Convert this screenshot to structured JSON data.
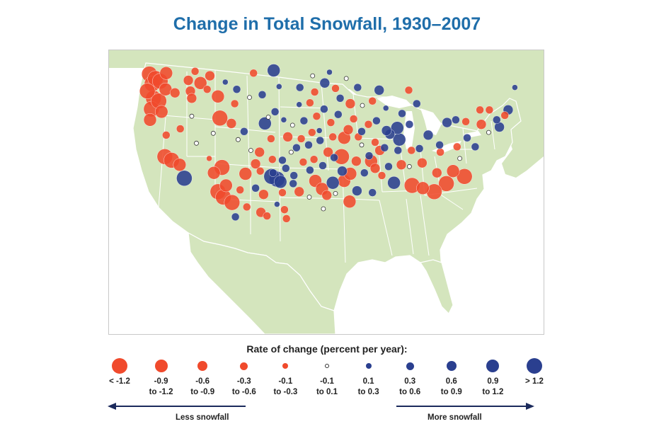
{
  "title": "Change in Total Snowfall, 1930–2007",
  "colors": {
    "decrease": "#f04a2c",
    "increase": "#2a3f8f",
    "neutral_fill": "#ffffff",
    "land": "#d4e5bd",
    "water": "#ffffff",
    "border": "#ffffff",
    "title": "#1f6eaa",
    "arrow": "#1b2a5c"
  },
  "legend": {
    "title": "Rate of change (percent per year):",
    "items": [
      {
        "label": "< -1.2",
        "kind": "decrease",
        "rank": 5
      },
      {
        "label": "-0.9\nto -1.2",
        "kind": "decrease",
        "rank": 4
      },
      {
        "label": "-0.6\nto -0.9",
        "kind": "decrease",
        "rank": 3
      },
      {
        "label": "-0.3\nto -0.6",
        "kind": "decrease",
        "rank": 2
      },
      {
        "label": "-0.1\nto -0.3",
        "kind": "decrease",
        "rank": 1
      },
      {
        "label": "-0.1\nto 0.1",
        "kind": "neutral",
        "rank": 0
      },
      {
        "label": "0.1\nto 0.3",
        "kind": "increase",
        "rank": 1
      },
      {
        "label": "0.3\nto 0.6",
        "kind": "increase",
        "rank": 2
      },
      {
        "label": "0.6\nto 0.9",
        "kind": "increase",
        "rank": 3
      },
      {
        "label": "0.9\nto 1.2",
        "kind": "increase",
        "rank": 4
      },
      {
        "label": "> 1.2",
        "kind": "increase",
        "rank": 5
      }
    ]
  },
  "arrows": {
    "left_label": "Less snowfall",
    "right_label": "More snowfall"
  },
  "stations": [
    {
      "lon": -123.2,
      "lat": 48.3,
      "rate": -1.5
    },
    {
      "lon": -122.3,
      "lat": 47.8,
      "rate": -1.4
    },
    {
      "lon": -122.8,
      "lat": 47.2,
      "rate": -1.5
    },
    {
      "lon": -121.6,
      "lat": 47.5,
      "rate": -1.3
    },
    {
      "lon": -120.7,
      "lat": 48.4,
      "rate": -1.0
    },
    {
      "lon": -123.5,
      "lat": 46.4,
      "rate": -1.4
    },
    {
      "lon": -122.6,
      "lat": 45.6,
      "rate": -1.5
    },
    {
      "lon": -121.8,
      "lat": 45.3,
      "rate": -1.3
    },
    {
      "lon": -122.9,
      "lat": 44.4,
      "rate": -1.4
    },
    {
      "lon": -121.4,
      "lat": 44.1,
      "rate": -1.0
    },
    {
      "lon": -123.1,
      "lat": 43.2,
      "rate": -1.2
    },
    {
      "lon": -120.8,
      "lat": 46.6,
      "rate": -1.0
    },
    {
      "lon": -119.4,
      "lat": 46.2,
      "rate": -0.7
    },
    {
      "lon": -117.4,
      "lat": 47.6,
      "rate": -0.7
    },
    {
      "lon": -117.1,
      "lat": 46.4,
      "rate": -0.8
    },
    {
      "lon": -116.4,
      "lat": 48.6,
      "rate": -0.4
    },
    {
      "lon": -115.6,
      "lat": 47.3,
      "rate": -1.0
    },
    {
      "lon": -114.2,
      "lat": 48.1,
      "rate": -0.8
    },
    {
      "lon": -116.9,
      "lat": 45.6,
      "rate": -0.6
    },
    {
      "lon": -114.6,
      "lat": 46.6,
      "rate": -0.5
    },
    {
      "lon": -113.0,
      "lat": 45.8,
      "rate": -1.1
    },
    {
      "lon": -111.9,
      "lat": 47.4,
      "rate": 0.2
    },
    {
      "lon": -110.5,
      "lat": 45.0,
      "rate": -0.3
    },
    {
      "lon": -110.2,
      "lat": 46.6,
      "rate": 0.3
    },
    {
      "lon": -107.7,
      "lat": 48.4,
      "rate": -0.3
    },
    {
      "lon": -104.7,
      "lat": 48.7,
      "rate": 0.9
    },
    {
      "lon": -106.4,
      "lat": 46.0,
      "rate": 0.4
    },
    {
      "lon": -103.9,
      "lat": 46.9,
      "rate": 0.2
    },
    {
      "lon": -108.3,
      "lat": 45.7,
      "rate": 0.0
    },
    {
      "lon": -112.7,
      "lat": 43.4,
      "rate": -1.3
    },
    {
      "lon": -111.0,
      "lat": 42.8,
      "rate": -0.6
    },
    {
      "lon": -109.1,
      "lat": 41.9,
      "rate": 0.3
    },
    {
      "lon": -106.0,
      "lat": 42.8,
      "rate": 0.9
    },
    {
      "lon": -104.5,
      "lat": 44.1,
      "rate": 0.3
    },
    {
      "lon": -103.2,
      "lat": 43.2,
      "rate": 0.2
    },
    {
      "lon": -105.1,
      "lat": 41.1,
      "rate": -0.4
    },
    {
      "lon": -118.6,
      "lat": 42.2,
      "rate": -0.3
    },
    {
      "lon": -116.2,
      "lat": 40.6,
      "rate": 0.0
    },
    {
      "lon": -120.9,
      "lat": 39.1,
      "rate": -1.5
    },
    {
      "lon": -119.9,
      "lat": 38.7,
      "rate": -1.4
    },
    {
      "lon": -118.7,
      "lat": 38.2,
      "rate": -1.2
    },
    {
      "lon": -118.0,
      "lat": 36.7,
      "rate": 1.4
    },
    {
      "lon": -114.3,
      "lat": 38.9,
      "rate": -0.2
    },
    {
      "lon": -113.6,
      "lat": 37.3,
      "rate": -0.9
    },
    {
      "lon": -112.4,
      "lat": 37.9,
      "rate": -1.3
    },
    {
      "lon": -113.0,
      "lat": 35.2,
      "rate": -1.5
    },
    {
      "lon": -112.2,
      "lat": 34.6,
      "rate": -1.4
    },
    {
      "lon": -110.9,
      "lat": 34.0,
      "rate": -1.3
    },
    {
      "lon": -109.7,
      "lat": 35.4,
      "rate": -0.3
    },
    {
      "lon": -111.8,
      "lat": 35.9,
      "rate": -1.0
    },
    {
      "lon": -110.4,
      "lat": 32.4,
      "rate": 0.3
    },
    {
      "lon": -108.7,
      "lat": 33.5,
      "rate": -0.4
    },
    {
      "lon": -107.4,
      "lat": 35.6,
      "rate": 0.3
    },
    {
      "lon": -106.2,
      "lat": 34.9,
      "rate": -0.7
    },
    {
      "lon": -106.6,
      "lat": 32.9,
      "rate": -0.7
    },
    {
      "lon": -105.7,
      "lat": 32.5,
      "rate": -0.3
    },
    {
      "lon": -104.2,
      "lat": 33.8,
      "rate": 0.2
    },
    {
      "lon": -103.4,
      "lat": 35.1,
      "rate": -0.3
    },
    {
      "lon": -103.1,
      "lat": 33.2,
      "rate": -0.5
    },
    {
      "lon": -102.8,
      "lat": 32.2,
      "rate": -0.4
    },
    {
      "lon": -104.8,
      "lat": 37.3,
      "rate": 0.4
    },
    {
      "lon": -104.9,
      "lat": 38.8,
      "rate": -0.3
    },
    {
      "lon": -106.7,
      "lat": 37.5,
      "rate": -0.5
    },
    {
      "lon": -106.8,
      "lat": 39.6,
      "rate": -0.8
    },
    {
      "lon": -107.4,
      "lat": 38.3,
      "rate": -0.6
    },
    {
      "lon": -108.9,
      "lat": 37.2,
      "rate": -1.0
    },
    {
      "lon": -108.1,
      "lat": 39.8,
      "rate": 0.0
    },
    {
      "lon": -104.2,
      "lat": 36.6,
      "rate": 1.4
    },
    {
      "lon": -105.0,
      "lat": 36.9,
      "rate": 1.3
    },
    {
      "lon": -103.7,
      "lat": 36.3,
      "rate": 0.9
    },
    {
      "lon": -102.9,
      "lat": 37.8,
      "rate": 0.3
    },
    {
      "lon": -103.4,
      "lat": 38.7,
      "rate": 0.4
    },
    {
      "lon": -102.1,
      "lat": 39.6,
      "rate": 0.0
    },
    {
      "lon": -102.6,
      "lat": 41.3,
      "rate": -0.6
    },
    {
      "lon": -101.3,
      "lat": 40.1,
      "rate": 0.5
    },
    {
      "lon": -100.6,
      "lat": 41.1,
      "rate": -0.3
    },
    {
      "lon": -99.5,
      "lat": 40.4,
      "rate": 0.3
    },
    {
      "lon": -99.0,
      "lat": 41.8,
      "rate": -0.4
    },
    {
      "lon": -97.8,
      "lat": 40.9,
      "rate": 0.5
    },
    {
      "lon": -101.9,
      "lat": 42.6,
      "rate": 0.0
    },
    {
      "lon": -100.2,
      "lat": 43.1,
      "rate": 0.4
    },
    {
      "lon": -98.3,
      "lat": 43.6,
      "rate": -0.4
    },
    {
      "lon": -97.2,
      "lat": 44.4,
      "rate": 0.3
    },
    {
      "lon": -99.3,
      "lat": 45.1,
      "rate": -0.3
    },
    {
      "lon": -100.9,
      "lat": 44.9,
      "rate": 0.2
    },
    {
      "lon": -98.6,
      "lat": 46.3,
      "rate": -0.5
    },
    {
      "lon": -97.1,
      "lat": 47.3,
      "rate": 0.6
    },
    {
      "lon": -98.9,
      "lat": 48.1,
      "rate": 0.0
    },
    {
      "lon": -96.4,
      "lat": 48.5,
      "rate": 0.2
    },
    {
      "lon": -95.5,
      "lat": 46.7,
      "rate": -0.4
    },
    {
      "lon": -94.8,
      "lat": 45.6,
      "rate": 0.4
    },
    {
      "lon": -93.3,
      "lat": 45.0,
      "rate": -0.6
    },
    {
      "lon": -92.2,
      "lat": 46.8,
      "rate": 0.3
    },
    {
      "lon": -93.9,
      "lat": 47.8,
      "rate": 0.0
    },
    {
      "lon": -95.1,
      "lat": 43.8,
      "rate": 0.5
    },
    {
      "lon": -96.2,
      "lat": 42.9,
      "rate": -0.5
    },
    {
      "lon": -93.6,
      "lat": 42.1,
      "rate": -0.7
    },
    {
      "lon": -91.6,
      "lat": 41.9,
      "rate": 0.3
    },
    {
      "lon": -94.2,
      "lat": 41.2,
      "rate": -0.9
    },
    {
      "lon": -92.8,
      "lat": 43.3,
      "rate": -0.4
    },
    {
      "lon": -90.6,
      "lat": 42.7,
      "rate": -0.5
    },
    {
      "lon": -89.4,
      "lat": 43.1,
      "rate": 0.5
    },
    {
      "lon": -88.0,
      "lat": 44.5,
      "rate": 0.2
    },
    {
      "lon": -90.0,
      "lat": 45.3,
      "rate": -0.3
    },
    {
      "lon": -91.5,
      "lat": 44.8,
      "rate": 0.0
    },
    {
      "lon": -87.9,
      "lat": 42.0,
      "rate": 0.6
    },
    {
      "lon": -89.6,
      "lat": 40.7,
      "rate": -0.5
    },
    {
      "lon": -88.2,
      "lat": 40.1,
      "rate": 0.4
    },
    {
      "lon": -90.2,
      "lat": 38.6,
      "rate": -1.0
    },
    {
      "lon": -91.6,
      "lat": 40.4,
      "rate": 0.0
    },
    {
      "lon": -92.4,
      "lat": 38.6,
      "rate": -0.8
    },
    {
      "lon": -94.6,
      "lat": 39.1,
      "rate": -1.3
    },
    {
      "lon": -93.3,
      "lat": 37.2,
      "rate": -0.9
    },
    {
      "lon": -94.5,
      "lat": 37.5,
      "rate": 0.7
    },
    {
      "lon": -95.7,
      "lat": 39.0,
      "rate": 0.5
    },
    {
      "lon": -96.6,
      "lat": 39.6,
      "rate": -0.6
    },
    {
      "lon": -97.4,
      "lat": 38.1,
      "rate": 0.4
    },
    {
      "lon": -98.7,
      "lat": 38.8,
      "rate": -0.5
    },
    {
      "lon": -99.3,
      "lat": 37.6,
      "rate": 0.3
    },
    {
      "lon": -100.3,
      "lat": 38.5,
      "rate": -0.4
    },
    {
      "lon": -101.7,
      "lat": 37.0,
      "rate": 0.5
    },
    {
      "lon": -98.5,
      "lat": 36.4,
      "rate": -1.1
    },
    {
      "lon": -97.5,
      "lat": 35.5,
      "rate": -1.0
    },
    {
      "lon": -95.9,
      "lat": 36.2,
      "rate": 0.9
    },
    {
      "lon": -96.8,
      "lat": 34.8,
      "rate": -0.7
    },
    {
      "lon": -99.4,
      "lat": 34.6,
      "rate": 0.0
    },
    {
      "lon": -100.9,
      "lat": 35.2,
      "rate": -0.8
    },
    {
      "lon": -101.8,
      "lat": 36.1,
      "rate": 0.4
    },
    {
      "lon": -97.3,
      "lat": 33.3,
      "rate": 0.0
    },
    {
      "lon": -94.2,
      "lat": 36.4,
      "rate": -1.0
    },
    {
      "lon": -92.3,
      "lat": 35.3,
      "rate": 0.8
    },
    {
      "lon": -93.4,
      "lat": 34.1,
      "rate": -1.2
    },
    {
      "lon": -90.0,
      "lat": 35.1,
      "rate": 0.5
    },
    {
      "lon": -88.6,
      "lat": 37.0,
      "rate": -0.5
    },
    {
      "lon": -89.6,
      "lat": 37.8,
      "rate": -0.7
    },
    {
      "lon": -86.8,
      "lat": 36.2,
      "rate": 0.9
    },
    {
      "lon": -85.7,
      "lat": 38.2,
      "rate": -0.6
    },
    {
      "lon": -86.2,
      "lat": 39.8,
      "rate": 0.3
    },
    {
      "lon": -87.4,
      "lat": 41.6,
      "rate": 0.8
    },
    {
      "lon": -86.3,
      "lat": 42.3,
      "rate": 0.9
    },
    {
      "lon": -85.6,
      "lat": 43.9,
      "rate": 0.5
    },
    {
      "lon": -84.5,
      "lat": 42.7,
      "rate": 0.3
    },
    {
      "lon": -86.0,
      "lat": 41.0,
      "rate": 1.0
    },
    {
      "lon": -84.2,
      "lat": 39.8,
      "rate": -0.3
    },
    {
      "lon": -83.0,
      "lat": 40.0,
      "rate": 0.4
    },
    {
      "lon": -81.7,
      "lat": 41.5,
      "rate": 0.6
    },
    {
      "lon": -82.6,
      "lat": 38.4,
      "rate": -0.8
    },
    {
      "lon": -84.5,
      "lat": 38.0,
      "rate": 0.0
    },
    {
      "lon": -84.1,
      "lat": 35.9,
      "rate": -1.3
    },
    {
      "lon": -82.5,
      "lat": 35.6,
      "rate": -1.2
    },
    {
      "lon": -80.8,
      "lat": 35.2,
      "rate": -1.4
    },
    {
      "lon": -79.0,
      "lat": 36.1,
      "rate": -1.5
    },
    {
      "lon": -80.4,
      "lat": 37.3,
      "rate": -0.7
    },
    {
      "lon": -78.0,
      "lat": 37.5,
      "rate": -0.9
    },
    {
      "lon": -77.0,
      "lat": 38.9,
      "rate": 0.0
    },
    {
      "lon": -76.3,
      "lat": 36.9,
      "rate": -1.4
    },
    {
      "lon": -79.9,
      "lat": 39.6,
      "rate": -0.4
    },
    {
      "lon": -80.0,
      "lat": 40.4,
      "rate": 0.3
    },
    {
      "lon": -78.9,
      "lat": 42.9,
      "rate": 0.8
    },
    {
      "lon": -77.6,
      "lat": 43.2,
      "rate": 0.4
    },
    {
      "lon": -76.1,
      "lat": 43.0,
      "rate": -0.4
    },
    {
      "lon": -75.9,
      "lat": 41.2,
      "rate": 0.3
    },
    {
      "lon": -77.4,
      "lat": 40.2,
      "rate": -0.5
    },
    {
      "lon": -74.7,
      "lat": 40.2,
      "rate": 0.4
    },
    {
      "lon": -73.8,
      "lat": 42.7,
      "rate": -0.6
    },
    {
      "lon": -72.7,
      "lat": 41.8,
      "rate": 0.0
    },
    {
      "lon": -71.1,
      "lat": 42.4,
      "rate": 0.6
    },
    {
      "lon": -72.6,
      "lat": 44.3,
      "rate": -0.5
    },
    {
      "lon": -71.5,
      "lat": 43.2,
      "rate": 0.3
    },
    {
      "lon": -70.3,
      "lat": 43.7,
      "rate": -0.4
    },
    {
      "lon": -69.8,
      "lat": 44.3,
      "rate": 0.7
    },
    {
      "lon": -68.8,
      "lat": 46.8,
      "rate": 0.2
    },
    {
      "lon": -74.0,
      "lat": 44.3,
      "rate": -0.3
    },
    {
      "lon": -83.4,
      "lat": 45.0,
      "rate": 0.4
    },
    {
      "lon": -84.6,
      "lat": 46.5,
      "rate": -0.3
    },
    {
      "lon": -89.0,
      "lat": 46.5,
      "rate": 0.6
    },
    {
      "lon": -92.1,
      "lat": 41.3,
      "rate": -0.5
    },
    {
      "lon": -95.9,
      "lat": 41.3,
      "rate": -0.4
    },
    {
      "lon": -97.9,
      "lat": 42.0,
      "rate": 0.2
    },
    {
      "lon": -100.8,
      "lat": 46.8,
      "rate": 0.4
    },
    {
      "lon": -90.5,
      "lat": 39.2,
      "rate": 0.4
    },
    {
      "lon": -87.6,
      "lat": 38.0,
      "rate": 0.5
    },
    {
      "lon": -88.9,
      "lat": 39.8,
      "rate": -0.6
    },
    {
      "lon": -91.2,
      "lat": 37.3,
      "rate": 0.3
    },
    {
      "lon": -95.5,
      "lat": 35.0,
      "rate": 0.0
    },
    {
      "lon": -110.0,
      "lat": 41.0,
      "rate": 0.0
    },
    {
      "lon": -113.7,
      "lat": 41.7,
      "rate": 0.0
    },
    {
      "lon": -116.9,
      "lat": 43.6,
      "rate": 0.0
    },
    {
      "lon": -120.7,
      "lat": 41.5,
      "rate": -0.4
    },
    {
      "lon": -105.5,
      "lat": 43.5,
      "rate": 0.0
    }
  ]
}
